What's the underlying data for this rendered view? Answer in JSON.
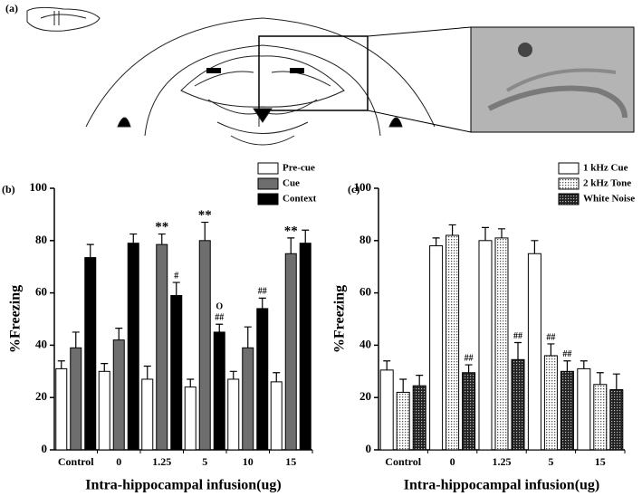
{
  "panel_a": {
    "label": "(a)"
  },
  "chart_data": [
    {
      "type": "bar",
      "panel": "(b)",
      "ylabel": "%Freezing",
      "xlabel": "Intra-hippocampal infusion(ug)",
      "categories": [
        "Control",
        "0",
        "1.25",
        "5",
        "10",
        "15"
      ],
      "ylim": [
        0,
        100
      ],
      "yticks": [
        0,
        20,
        40,
        60,
        80,
        100
      ],
      "series": [
        {
          "name": "Pre-cue",
          "color": "#ffffff",
          "values": [
            31,
            30,
            27,
            24,
            27,
            26
          ],
          "errors": [
            3,
            3,
            5,
            3,
            3,
            3.5
          ],
          "annotations": [
            null,
            null,
            null,
            null,
            null,
            null
          ]
        },
        {
          "name": "Cue",
          "color": "#6e6e6e",
          "values": [
            39,
            42,
            78.5,
            80,
            39,
            75
          ],
          "errors": [
            6,
            4.5,
            4,
            7,
            8,
            6
          ],
          "annotations": [
            null,
            null,
            "**",
            "**",
            null,
            "**"
          ]
        },
        {
          "name": "Context",
          "color": "#000000",
          "values": [
            73.5,
            79,
            59,
            45,
            54,
            79
          ],
          "errors": [
            5,
            3.5,
            5,
            3,
            4,
            5
          ],
          "annotations": [
            null,
            null,
            "#",
            "##",
            "##",
            null
          ],
          "annotations_top": [
            null,
            null,
            null,
            "O",
            null,
            null
          ]
        }
      ]
    },
    {
      "type": "bar",
      "panel": "(c)",
      "ylabel": "%Freezing",
      "xlabel": "Intra-hippocampal infusion(ug)",
      "categories": [
        "Control",
        "0",
        "1.25",
        "5",
        "15"
      ],
      "ylim": [
        0,
        100
      ],
      "yticks": [
        0,
        20,
        40,
        60,
        80,
        100
      ],
      "series": [
        {
          "name": "1 kHz Cue",
          "color": "#ffffff",
          "values": [
            30.5,
            78,
            80,
            75,
            31
          ],
          "errors": [
            3.5,
            3,
            5,
            5,
            3
          ],
          "annotations": [
            null,
            null,
            null,
            null,
            null
          ]
        },
        {
          "name": "2 kHz Tone",
          "color": "#d8d8d8",
          "pattern": "dots",
          "values": [
            22,
            82,
            81,
            36,
            25
          ],
          "errors": [
            5,
            4,
            3.5,
            4.5,
            4.5
          ],
          "annotations": [
            null,
            null,
            null,
            "##",
            null
          ]
        },
        {
          "name": "White Noise",
          "color": "#333333",
          "pattern": "checker",
          "values": [
            24.5,
            29.5,
            34.5,
            30,
            23
          ],
          "errors": [
            4,
            3,
            6.5,
            4,
            6
          ],
          "annotations": [
            null,
            "##",
            "##",
            "##",
            null
          ]
        }
      ]
    }
  ]
}
